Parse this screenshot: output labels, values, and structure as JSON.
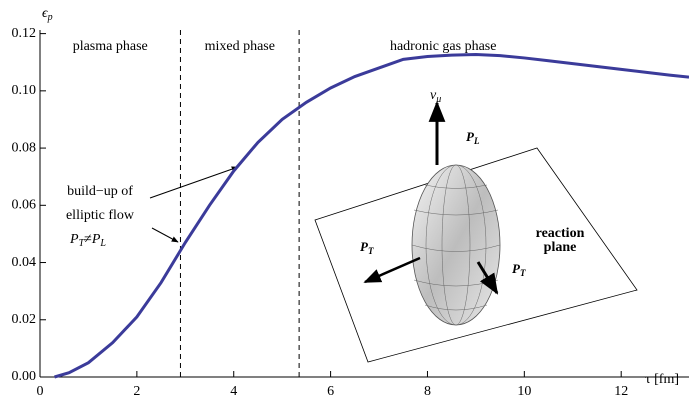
{
  "chart_data": {
    "type": "line",
    "y_label": "ϵ",
    "y_label_sub": "p",
    "x_label": "τ [fm]",
    "x": [
      0.3,
      0.6,
      1,
      1.5,
      2,
      2.5,
      3,
      3.5,
      4,
      4.5,
      5,
      5.5,
      6,
      6.5,
      7,
      7.5,
      8,
      8.5,
      9,
      9.5,
      10,
      10.5,
      11,
      11.5,
      12,
      12.5,
      13,
      13.4
    ],
    "series": [
      {
        "color": "#3b3b9a",
        "values": [
          0,
          0.0015,
          0.005,
          0.012,
          0.021,
          0.033,
          0.047,
          0.06,
          0.072,
          0.082,
          0.09,
          0.096,
          0.101,
          0.105,
          0.108,
          0.111,
          0.112,
          0.1125,
          0.1127,
          0.1123,
          0.1115,
          0.1105,
          0.1095,
          0.1085,
          0.1075,
          0.1065,
          0.1055,
          0.1048
        ]
      }
    ],
    "xlim": [
      0,
      13.4
    ],
    "ylim": [
      0,
      0.13
    ],
    "xticks": [
      0,
      2,
      4,
      6,
      8,
      10,
      12
    ],
    "yticks": [
      {
        "value": 0,
        "label": "0.00"
      },
      {
        "value": 0.02,
        "label": "0.02"
      },
      {
        "value": 0.04,
        "label": "0.04"
      },
      {
        "value": 0.06,
        "label": "0.06"
      },
      {
        "value": 0.08,
        "label": "0.08"
      },
      {
        "value": 0.1,
        "label": "0.10"
      },
      {
        "value": 0.12,
        "label": "0.12"
      }
    ],
    "phase_boundaries": [
      2.9,
      5.35
    ],
    "phase_labels": [
      "plasma phase",
      "mixed phase",
      "hadronic gas phase"
    ],
    "annotation": [
      "build−up of",
      "elliptic flow"
    ],
    "annotation_formula": {
      "p1": "P",
      "s1": "T",
      "op": "≠",
      "p2": "P",
      "s2": "L"
    },
    "inset": {
      "v": "v",
      "v_sub": "μ",
      "pl": "P",
      "pl_sub": "L",
      "pt": "P",
      "pt_sub": "T",
      "pt2": "P",
      "pt2_sub": "T",
      "plane": [
        "reaction",
        "plane"
      ]
    }
  }
}
